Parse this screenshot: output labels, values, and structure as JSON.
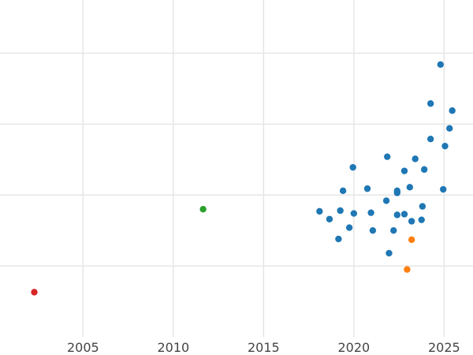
{
  "chart_data": {
    "type": "scatter",
    "title": "",
    "xlabel": "",
    "ylabel": "",
    "x_ticks": [
      2005,
      2010,
      2015,
      2020,
      2025
    ],
    "xlim": [
      2000.4,
      2026.6
    ],
    "y_grid": [
      1,
      2,
      3,
      4
    ],
    "ylim": [
      0,
      4.75
    ],
    "grid": true,
    "legend": "none",
    "series": [
      {
        "color": "#1f77b4",
        "points": [
          [
            2024.8,
            3.84
          ],
          [
            2024.25,
            3.29
          ],
          [
            2025.45,
            3.19
          ],
          [
            2025.3,
            2.94
          ],
          [
            2024.25,
            2.79
          ],
          [
            2025.05,
            2.69
          ],
          [
            2021.85,
            2.54
          ],
          [
            2023.4,
            2.51
          ],
          [
            2019.95,
            2.39
          ],
          [
            2022.8,
            2.34
          ],
          [
            2023.9,
            2.36
          ],
          [
            2020.75,
            2.09
          ],
          [
            2023.1,
            2.11
          ],
          [
            2022.4,
            2.06
          ],
          [
            2019.4,
            2.06
          ],
          [
            2022.4,
            2.03
          ],
          [
            2024.95,
            2.08
          ],
          [
            2021.8,
            1.92
          ],
          [
            2023.8,
            1.84
          ],
          [
            2018.1,
            1.77
          ],
          [
            2019.25,
            1.78
          ],
          [
            2020.0,
            1.74
          ],
          [
            2020.95,
            1.75
          ],
          [
            2022.4,
            1.72
          ],
          [
            2022.8,
            1.73
          ],
          [
            2018.65,
            1.66
          ],
          [
            2023.75,
            1.65
          ],
          [
            2023.2,
            1.63
          ],
          [
            2019.75,
            1.54
          ],
          [
            2021.05,
            1.5
          ],
          [
            2022.2,
            1.5
          ],
          [
            2019.15,
            1.38
          ],
          [
            2021.95,
            1.18
          ]
        ]
      },
      {
        "color": "#ff7f0e",
        "points": [
          [
            2023.2,
            1.37
          ],
          [
            2022.95,
            0.95
          ]
        ]
      },
      {
        "color": "#2ca02c",
        "points": [
          [
            2011.65,
            1.8
          ]
        ]
      },
      {
        "color": "#d62728",
        "points": [
          [
            2002.3,
            0.63
          ]
        ]
      }
    ]
  }
}
